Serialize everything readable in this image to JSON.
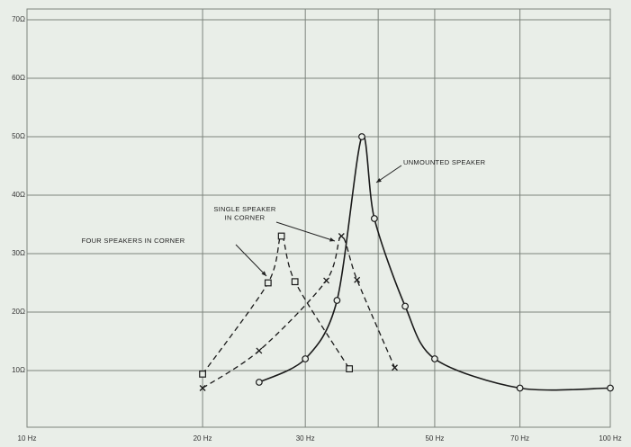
{
  "chart_data": {
    "type": "line",
    "xscale": "log",
    "xlim": [
      10,
      100
    ],
    "ylim": [
      0,
      70
    ],
    "xticks": [
      {
        "value": 10,
        "label": "10 Hz"
      },
      {
        "value": 20,
        "label": "20 Hz"
      },
      {
        "value": 30,
        "label": "30 Hz"
      },
      {
        "value": 50,
        "label": "50 Hz"
      },
      {
        "value": 70,
        "label": "70 Hz"
      },
      {
        "value": 100,
        "label": "100 Hz"
      }
    ],
    "xminor": [
      40
    ],
    "yticks": [
      {
        "value": 10,
        "label": "10Ω"
      },
      {
        "value": 20,
        "label": "20Ω"
      },
      {
        "value": 30,
        "label": "30Ω"
      },
      {
        "value": 40,
        "label": "40Ω"
      },
      {
        "value": 50,
        "label": "50Ω"
      },
      {
        "value": 60,
        "label": "60Ω"
      },
      {
        "value": 70,
        "label": "70Ω"
      }
    ],
    "grid": true,
    "series": [
      {
        "name": "UNMOUNTED SPEAKER",
        "color": "#1a1a1a",
        "dash": false,
        "marker": "circle",
        "x": [
          25,
          30,
          34,
          37.5,
          39.4,
          44.5,
          50,
          70,
          100
        ],
        "values": [
          8,
          12,
          22,
          50,
          36,
          21,
          12,
          7,
          7
        ]
      },
      {
        "name": [
          "SINGLE SPEAKER",
          "IN CORNER"
        ],
        "color": "#1a1a1a",
        "dash": true,
        "marker": "x",
        "x": [
          20,
          25,
          32.6,
          34.6,
          36.8,
          42.7
        ],
        "values": [
          7,
          13.4,
          25.4,
          33,
          25.5,
          10.5
        ]
      },
      {
        "name": "FOUR SPEAKERS IN CORNER",
        "color": "#1a1a1a",
        "dash": true,
        "marker": "square",
        "x": [
          20,
          25.9,
          27.3,
          28.8,
          35.7
        ],
        "values": [
          9.4,
          25,
          33,
          25.2,
          10.3
        ]
      }
    ]
  }
}
